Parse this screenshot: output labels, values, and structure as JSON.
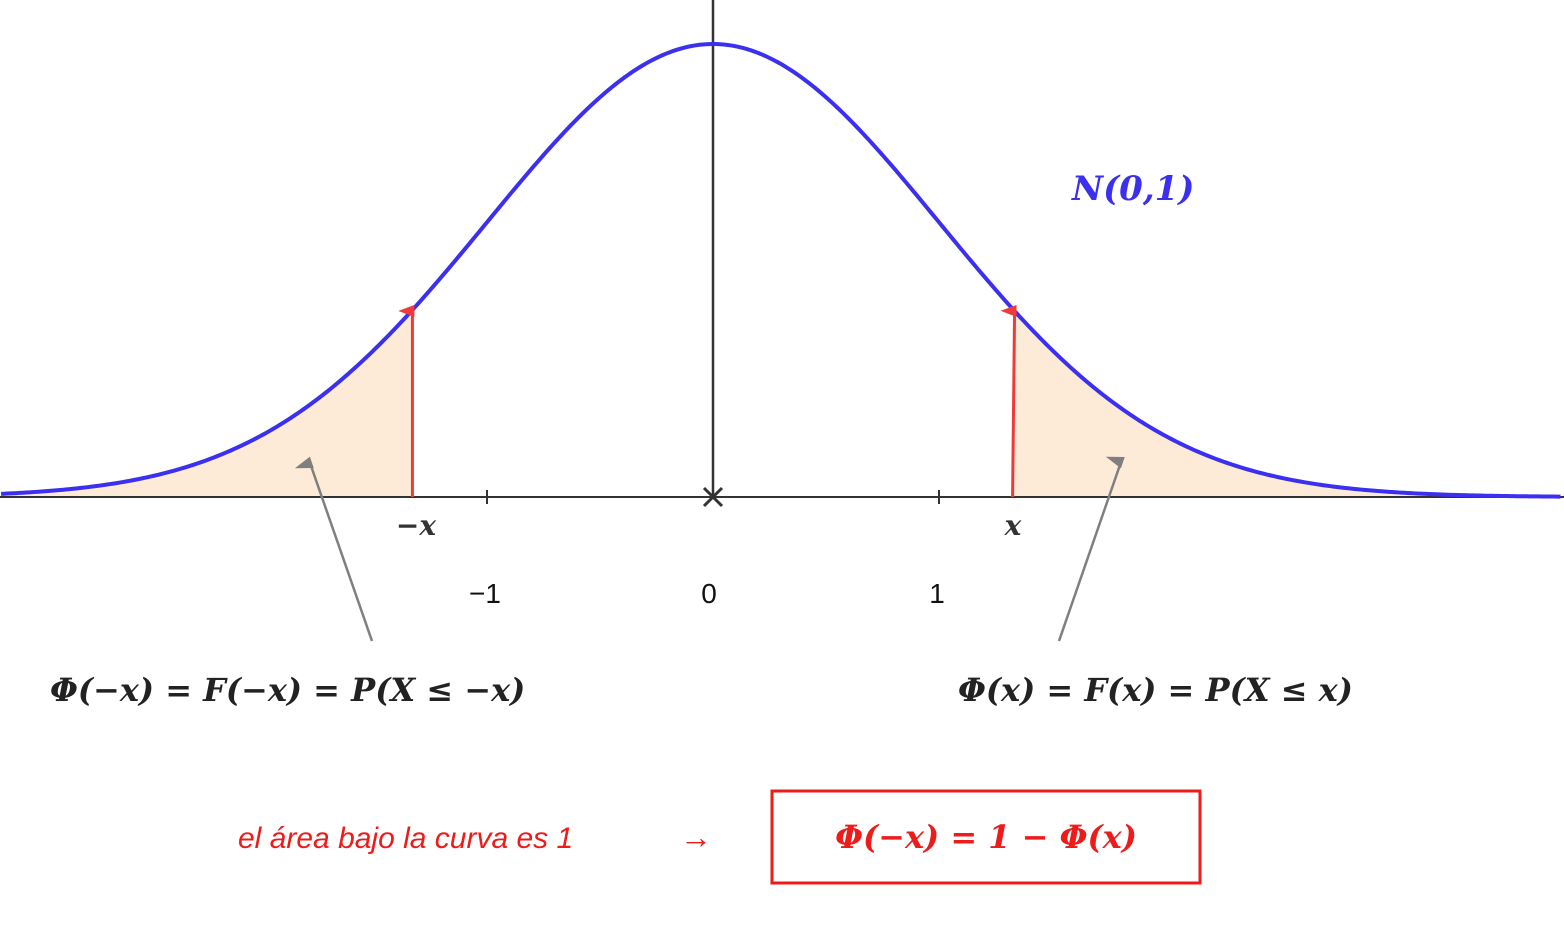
{
  "chart_data": {
    "type": "area",
    "distribution": "standard normal density",
    "mu": 0,
    "sigma": 1,
    "x_range": [
      -3.15,
      3.75
    ],
    "point_marker_x": 1.33,
    "curve_label": "N(0,1)",
    "tick_labels": [
      {
        "value": -1,
        "label": "−1"
      },
      {
        "value": 0,
        "label": "0"
      },
      {
        "value": 1,
        "label": "1"
      }
    ],
    "point_labels": {
      "negative": "−x",
      "positive": "x"
    },
    "shaded_regions": [
      {
        "name": "left tail",
        "from": "-inf",
        "to": -1.33
      },
      {
        "name": "right tail",
        "from": 1.33,
        "to": "inf"
      }
    ],
    "annotations": {
      "left_formula": "Φ(−x) = F(−x) = P(X ≤ −x)",
      "right_formula": "Φ(x) = F(x) = P(X ≤ x)",
      "area_note": "el área bajo la curva es 1",
      "arrow_glyph": "→",
      "boxed_formula": "Φ(−x) = 1 − Φ(x)"
    },
    "colors": {
      "curve": "#3b2ff0",
      "shade": "#fdebd8",
      "marker": "#f03a3a",
      "axis": "#333333",
      "pointer": "#7f7f7f",
      "accent_text": "#ee1b1b"
    }
  }
}
